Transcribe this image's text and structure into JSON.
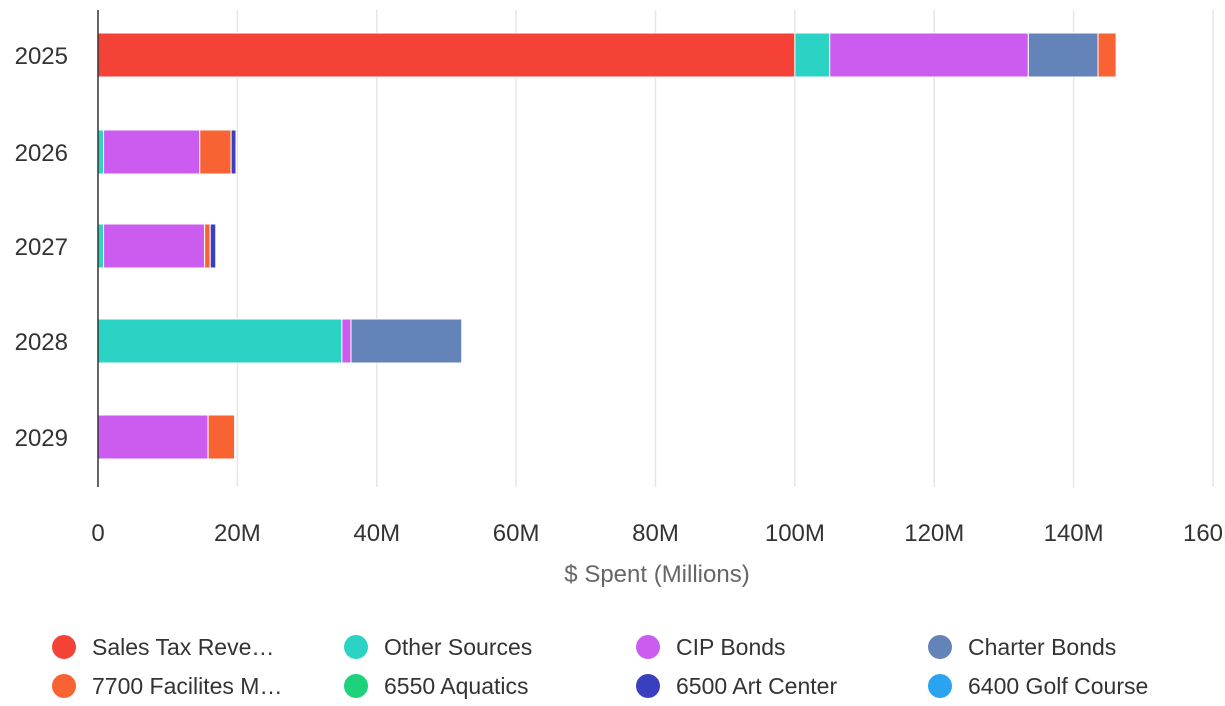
{
  "chart_data": {
    "type": "bar",
    "orientation": "horizontal",
    "stacked": true,
    "categories": [
      "2025",
      "2026",
      "2027",
      "2028",
      "2029"
    ],
    "xlabel": "$ Spent (Millions)",
    "xlim": [
      0,
      160
    ],
    "x_ticks": [
      0,
      20,
      40,
      60,
      80,
      100,
      120,
      140,
      160
    ],
    "x_tick_labels": [
      "0",
      "20M",
      "40M",
      "60M",
      "80M",
      "100M",
      "120M",
      "140M",
      "160M"
    ],
    "grid": true,
    "legend_position": "bottom",
    "series": [
      {
        "name": "Sales Tax Reve…",
        "color": "#f44336",
        "values": [
          100.0,
          0,
          0,
          0,
          0
        ]
      },
      {
        "name": "Other Sources",
        "color": "#2ad3c4",
        "values": [
          5.0,
          0.8,
          0.8,
          35.0,
          0
        ]
      },
      {
        "name": "CIP Bonds",
        "color": "#cc5cf0",
        "values": [
          28.5,
          13.8,
          14.5,
          1.3,
          15.8
        ]
      },
      {
        "name": "Charter Bonds",
        "color": "#6483b8",
        "values": [
          10.0,
          0,
          0,
          15.9,
          0
        ]
      },
      {
        "name": "7700 Facilites M…",
        "color": "#f96232",
        "values": [
          2.6,
          4.5,
          0.8,
          0,
          3.8
        ]
      },
      {
        "name": "6550 Aquatics",
        "color": "#1dd27a",
        "values": [
          0,
          0,
          0,
          0,
          0
        ]
      },
      {
        "name": "6500 Art Center",
        "color": "#3a3fc0",
        "values": [
          0,
          0.7,
          0.8,
          0,
          0
        ]
      },
      {
        "name": "6400 Golf Course",
        "color": "#2aa3f0",
        "values": [
          0,
          0,
          0,
          0,
          0
        ]
      }
    ]
  }
}
